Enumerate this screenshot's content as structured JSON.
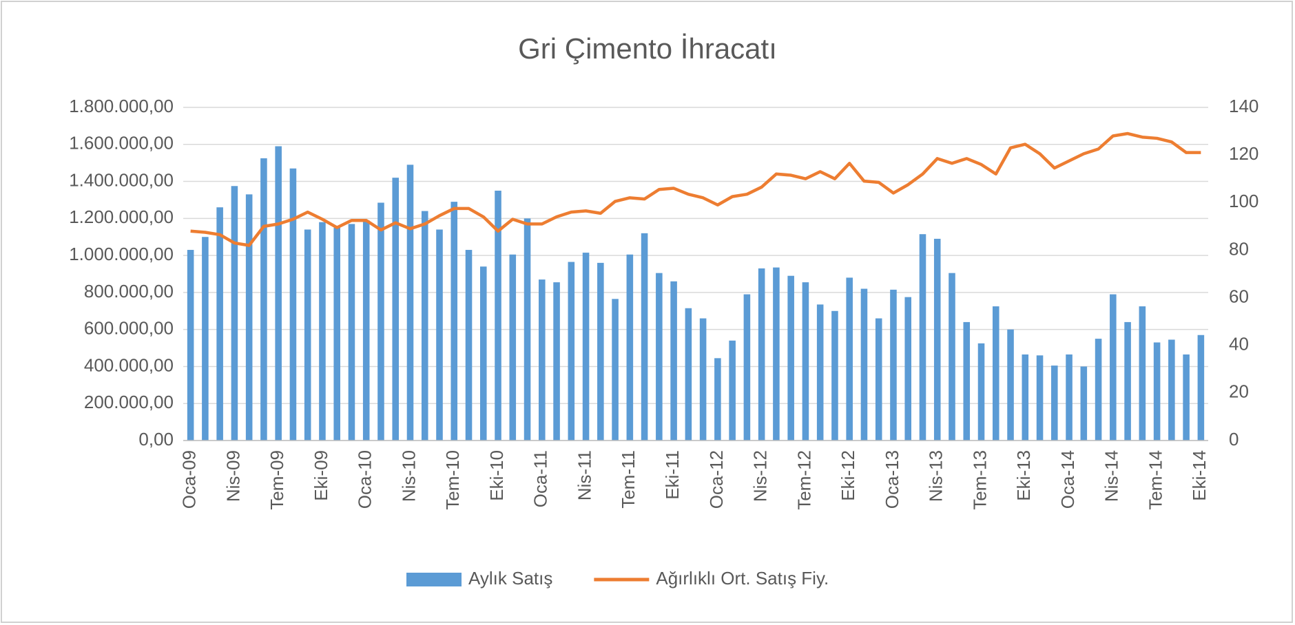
{
  "chart_data": {
    "type": "bar_line",
    "title": "Gri Çimento İhracatı",
    "categories": [
      "Oca-09",
      null,
      null,
      "Nis-09",
      null,
      null,
      "Tem-09",
      null,
      null,
      "Eki-09",
      null,
      null,
      "Oca-10",
      null,
      null,
      "Nis-10",
      null,
      null,
      "Tem-10",
      null,
      null,
      "Eki-10",
      null,
      null,
      "Oca-11",
      null,
      null,
      "Nis-11",
      null,
      null,
      "Tem-11",
      null,
      null,
      "Eki-11",
      null,
      null,
      "Oca-12",
      null,
      null,
      "Nis-12",
      null,
      null,
      "Tem-12",
      null,
      null,
      "Eki-12",
      null,
      null,
      "Oca-13",
      null,
      null,
      "Nis-13",
      null,
      null,
      "Tem-13",
      null,
      null,
      "Eki-13",
      null,
      null,
      "Oca-14",
      null,
      null,
      "Nis-14",
      null,
      null,
      "Tem-14",
      null,
      null,
      "Eki-14"
    ],
    "series": [
      {
        "name": "Aylık Satış",
        "type": "bar",
        "color": "#5b9bd5",
        "values": [
          1030000,
          1100000,
          1260000,
          1375000,
          1330000,
          1525000,
          1590000,
          1470000,
          1140000,
          1180000,
          1150000,
          1170000,
          1190000,
          1285000,
          1420000,
          1490000,
          1240000,
          1140000,
          1290000,
          1030000,
          940000,
          1350000,
          1005000,
          1200000,
          870000,
          855000,
          965000,
          1015000,
          960000,
          765000,
          1005000,
          1120000,
          905000,
          860000,
          715000,
          660000,
          445000,
          540000,
          790000,
          930000,
          935000,
          890000,
          855000,
          735000,
          700000,
          880000,
          820000,
          660000,
          815000,
          775000,
          1115000,
          1090000,
          905000,
          640000,
          525000,
          725000,
          600000,
          465000,
          460000,
          405000,
          465000,
          400000,
          550000,
          790000,
          640000,
          725000,
          530000,
          545000,
          465000,
          570000
        ]
      },
      {
        "name": "Ağırlıklı Ort. Satış Fiy.",
        "type": "line",
        "axis": "y2",
        "color": "#ed7d31",
        "values": [
          88,
          87.5,
          86.5,
          83,
          82,
          90,
          91,
          93,
          96,
          93,
          89.5,
          92.5,
          92.5,
          88.5,
          91.5,
          89,
          91,
          94.5,
          97.5,
          97.5,
          94,
          88,
          93,
          91,
          91,
          94,
          96,
          96.5,
          95.5,
          100.5,
          102,
          101.5,
          105.5,
          106,
          103.5,
          102,
          99,
          102.5,
          103.5,
          106.5,
          112,
          111.5,
          110,
          113,
          110,
          116.5,
          109,
          108.5,
          104,
          107.5,
          112,
          118.5,
          116.5,
          118.5,
          116,
          112,
          123,
          124.5,
          120.5,
          114.5,
          117.5,
          120.5,
          122.5,
          128,
          129,
          127.5,
          127,
          125.5,
          121,
          121
        ]
      }
    ],
    "ylim": [
      0,
      1800000
    ],
    "yticks": [
      {
        "value": 0,
        "label": "0,00"
      },
      {
        "value": 200000,
        "label": "200.000,00"
      },
      {
        "value": 400000,
        "label": "400.000,00"
      },
      {
        "value": 600000,
        "label": "600.000,00"
      },
      {
        "value": 800000,
        "label": "800.000,00"
      },
      {
        "value": 1000000,
        "label": "1.000.000,00"
      },
      {
        "value": 1200000,
        "label": "1.200.000,00"
      },
      {
        "value": 1400000,
        "label": "1.400.000,00"
      },
      {
        "value": 1600000,
        "label": "1.600.000,00"
      },
      {
        "value": 1800000,
        "label": "1.800.000,00"
      }
    ],
    "y2lim": [
      0,
      140
    ],
    "y2ticks": [
      0,
      20,
      40,
      60,
      80,
      100,
      120,
      140
    ],
    "grid": true,
    "legend": "bottom"
  }
}
